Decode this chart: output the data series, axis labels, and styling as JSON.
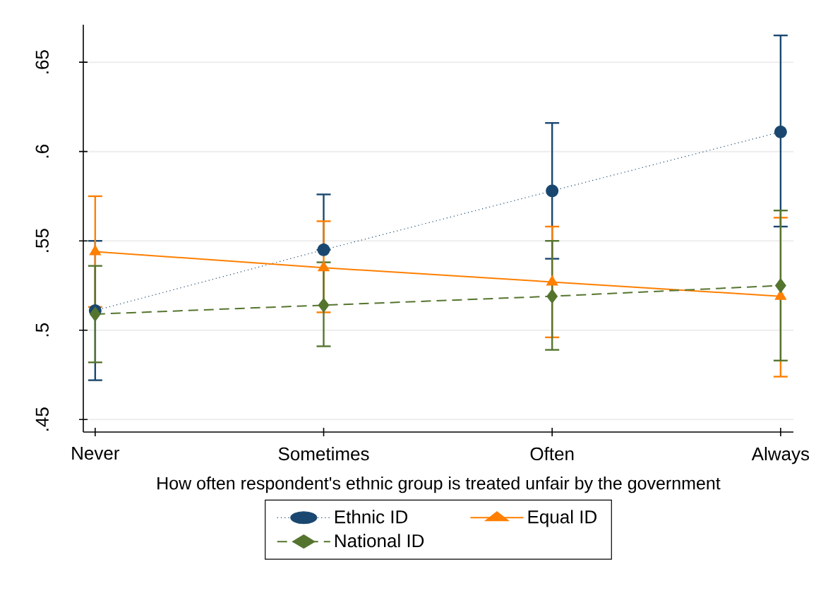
{
  "chart_data": {
    "type": "line",
    "xlabel": "How often respondent's ethnic group is treated unfair by the government",
    "categories": [
      "Never",
      "Sometimes",
      "Often",
      "Always"
    ],
    "series": [
      {
        "name": "Ethnic ID",
        "color": "#1a476f",
        "marker": "circle",
        "line_style": "dotted",
        "values": [
          0.511,
          0.545,
          0.578,
          0.611
        ],
        "errors": [
          [
            0.472,
            0.55
          ],
          [
            0.545,
            0.576
          ],
          [
            0.54,
            0.616
          ],
          [
            0.558,
            0.665
          ]
        ]
      },
      {
        "name": "Equal ID",
        "color": "#ff7f00",
        "marker": "triangle",
        "line_style": "solid",
        "values": [
          0.544,
          0.535,
          0.527,
          0.519
        ],
        "errors": [
          [
            0.513,
            0.575
          ],
          [
            0.51,
            0.561
          ],
          [
            0.496,
            0.558
          ],
          [
            0.474,
            0.563
          ]
        ]
      },
      {
        "name": "National ID",
        "color": "#55752f",
        "marker": "diamond",
        "line_style": "dashed",
        "values": [
          0.509,
          0.514,
          0.519,
          0.525
        ],
        "errors": [
          [
            0.482,
            0.536
          ],
          [
            0.491,
            0.538
          ],
          [
            0.489,
            0.55
          ],
          [
            0.483,
            0.567
          ]
        ]
      }
    ],
    "ylim": [
      0.443,
      0.671
    ],
    "yticks": [
      {
        "value": 0.45,
        "label": ".45"
      },
      {
        "value": 0.5,
        "label": ".5"
      },
      {
        "value": 0.55,
        "label": ".55"
      },
      {
        "value": 0.6,
        "label": ".6"
      },
      {
        "value": 0.65,
        "label": ".65"
      }
    ],
    "grid": "y",
    "legend": "bottom"
  }
}
